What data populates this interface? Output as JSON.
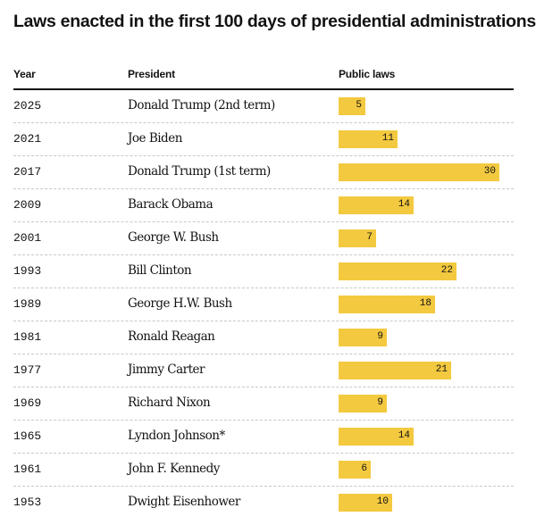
{
  "title": "Laws enacted in the first 100 days of presidential administrations",
  "headers": {
    "year": "Year",
    "president": "President",
    "laws": "Public laws"
  },
  "colors": {
    "bar": "#f3c93f",
    "text": "#121212",
    "rule": "#121212",
    "grid": "#c8c8c8"
  },
  "chart_data": {
    "type": "bar",
    "orientation": "horizontal",
    "title": "Laws enacted in the first 100 days of presidential administrations",
    "xlim": [
      0,
      30
    ],
    "rows": [
      {
        "year": "2025",
        "president": "Donald Trump (2nd term)",
        "value": 5
      },
      {
        "year": "2021",
        "president": "Joe Biden",
        "value": 11
      },
      {
        "year": "2017",
        "president": "Donald Trump (1st term)",
        "value": 30
      },
      {
        "year": "2009",
        "president": "Barack Obama",
        "value": 14
      },
      {
        "year": "2001",
        "president": "George W. Bush",
        "value": 7
      },
      {
        "year": "1993",
        "president": "Bill Clinton",
        "value": 22
      },
      {
        "year": "1989",
        "president": "George H.W. Bush",
        "value": 18
      },
      {
        "year": "1981",
        "president": "Ronald Reagan",
        "value": 9
      },
      {
        "year": "1977",
        "president": "Jimmy Carter",
        "value": 21
      },
      {
        "year": "1969",
        "president": "Richard Nixon",
        "value": 9
      },
      {
        "year": "1965",
        "president": "Lyndon Johnson*",
        "value": 14
      },
      {
        "year": "1961",
        "president": "John F. Kennedy",
        "value": 6
      },
      {
        "year": "1953",
        "president": "Dwight Eisenhower",
        "value": 10
      }
    ]
  }
}
